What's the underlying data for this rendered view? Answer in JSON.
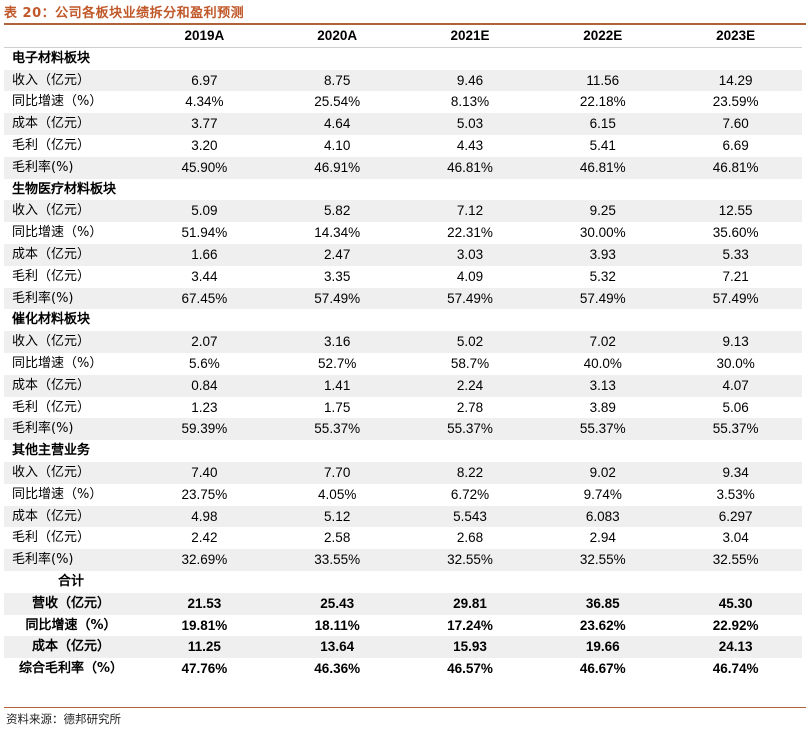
{
  "title": "表 20：公司各板块业绩拆分和盈利预测",
  "header": [
    "",
    "2019A",
    "2020A",
    "2021E",
    "2022E",
    "2023E"
  ],
  "sections": [
    {
      "name": "电子材料板块",
      "rows": [
        {
          "label": "收入（亿元）",
          "values": [
            "6.97",
            "8.75",
            "9.46",
            "11.56",
            "14.29"
          ]
        },
        {
          "label": "同比增速（%）",
          "values": [
            "4.34%",
            "25.54%",
            "8.13%",
            "22.18%",
            "23.59%"
          ]
        },
        {
          "label": "成本（亿元）",
          "values": [
            "3.77",
            "4.64",
            "5.03",
            "6.15",
            "7.60"
          ]
        },
        {
          "label": "毛利（亿元）",
          "values": [
            "3.20",
            "4.10",
            "4.43",
            "5.41",
            "6.69"
          ]
        },
        {
          "label": "毛利率(%)",
          "values": [
            "45.90%",
            "46.91%",
            "46.81%",
            "46.81%",
            "46.81%"
          ]
        }
      ]
    },
    {
      "name": "生物医疗材料板块",
      "rows": [
        {
          "label": "收入（亿元）",
          "values": [
            "5.09",
            "5.82",
            "7.12",
            "9.25",
            "12.55"
          ]
        },
        {
          "label": "同比增速（%）",
          "values": [
            "51.94%",
            "14.34%",
            "22.31%",
            "30.00%",
            "35.60%"
          ]
        },
        {
          "label": "成本（亿元）",
          "values": [
            "1.66",
            "2.47",
            "3.03",
            "3.93",
            "5.33"
          ]
        },
        {
          "label": "毛利（亿元）",
          "values": [
            "3.44",
            "3.35",
            "4.09",
            "5.32",
            "7.21"
          ]
        },
        {
          "label": "毛利率(%)",
          "values": [
            "67.45%",
            "57.49%",
            "57.49%",
            "57.49%",
            "57.49%"
          ]
        }
      ]
    },
    {
      "name": "催化材料板块",
      "rows": [
        {
          "label": "收入（亿元）",
          "values": [
            "2.07",
            "3.16",
            "5.02",
            "7.02",
            "9.13"
          ]
        },
        {
          "label": "同比增速（%）",
          "values": [
            "5.6%",
            "52.7%",
            "58.7%",
            "40.0%",
            "30.0%"
          ]
        },
        {
          "label": "成本（亿元）",
          "values": [
            "0.84",
            "1.41",
            "2.24",
            "3.13",
            "4.07"
          ]
        },
        {
          "label": "毛利（亿元）",
          "values": [
            "1.23",
            "1.75",
            "2.78",
            "3.89",
            "5.06"
          ]
        },
        {
          "label": "毛利率(%)",
          "values": [
            "59.39%",
            "55.37%",
            "55.37%",
            "55.37%",
            "55.37%"
          ]
        }
      ]
    },
    {
      "name": "其他主营业务",
      "rows": [
        {
          "label": "收入（亿元）",
          "values": [
            "7.40",
            "7.70",
            "8.22",
            "9.02",
            "9.34"
          ]
        },
        {
          "label": "同比增速（%）",
          "values": [
            "23.75%",
            "4.05%",
            "6.72%",
            "9.74%",
            "3.53%"
          ]
        },
        {
          "label": "成本（亿元）",
          "values": [
            "4.98",
            "5.12",
            "5.543",
            "6.083",
            "6.297"
          ]
        },
        {
          "label": "毛利（亿元）",
          "values": [
            "2.42",
            "2.58",
            "2.68",
            "2.94",
            "3.04"
          ]
        },
        {
          "label": "毛利率(%)",
          "values": [
            "32.69%",
            "33.55%",
            "32.55%",
            "32.55%",
            "32.55%"
          ]
        }
      ]
    }
  ],
  "total": {
    "name": "合计",
    "rows": [
      {
        "label": "营收（亿元）",
        "values": [
          "21.53",
          "25.43",
          "29.81",
          "36.85",
          "45.30"
        ]
      },
      {
        "label": "同比增速（%）",
        "values": [
          "19.81%",
          "18.11%",
          "17.24%",
          "23.62%",
          "22.92%"
        ]
      },
      {
        "label": "成本（亿元）",
        "values": [
          "11.25",
          "13.64",
          "15.93",
          "19.66",
          "24.13"
        ]
      },
      {
        "label": "综合毛利率（%）",
        "values": [
          "47.76%",
          "46.36%",
          "46.57%",
          "46.67%",
          "46.74%"
        ]
      }
    ]
  },
  "source": "资料来源：德邦研究所"
}
